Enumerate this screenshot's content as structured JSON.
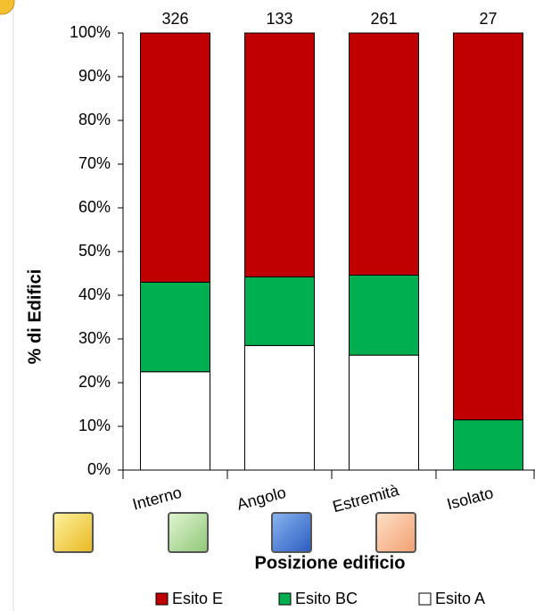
{
  "chart_data": {
    "type": "stacked_bar",
    "y_label": "% di Edifici",
    "x_label": "Posizione edificio",
    "categories": [
      "Interno",
      "Angolo",
      "Estremità",
      "Isolato"
    ],
    "category_totals": [
      326,
      133,
      261,
      27
    ],
    "series": [
      {
        "name": "Esito A",
        "color": "#ffffff",
        "values": [
          22.5,
          28.5,
          26.3,
          0
        ]
      },
      {
        "name": "Esito BC",
        "color": "#00b050",
        "values": [
          20.5,
          15.7,
          18.3,
          11.5
        ]
      },
      {
        "name": "Esito E",
        "color": "#c00000",
        "values": [
          57,
          55.8,
          55.4,
          88.5
        ]
      }
    ],
    "ylim": [
      0,
      100
    ],
    "yticks": [
      {
        "value": 0,
        "label": "0%"
      },
      {
        "value": 10,
        "label": "10%"
      },
      {
        "value": 20,
        "label": "20%"
      },
      {
        "value": 30,
        "label": "30%"
      },
      {
        "value": 40,
        "label": "40%"
      },
      {
        "value": 50,
        "label": "50%"
      },
      {
        "value": 60,
        "label": "60%"
      },
      {
        "value": 70,
        "label": "70%"
      },
      {
        "value": 80,
        "label": "80%"
      },
      {
        "value": 90,
        "label": "90%"
      },
      {
        "value": 100,
        "label": "100%"
      }
    ]
  }
}
